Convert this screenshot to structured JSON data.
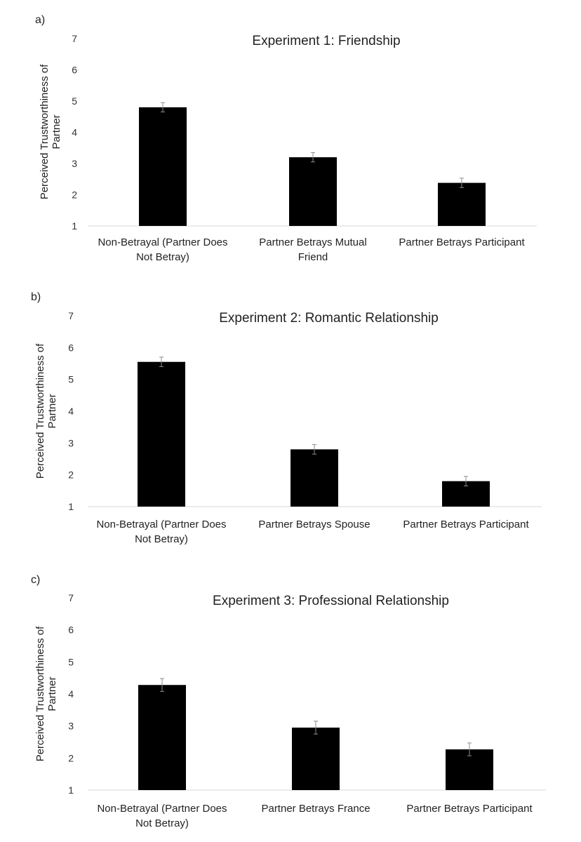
{
  "chart_data": [
    {
      "type": "bar",
      "panel_label": "a)",
      "title": "Experiment 1: Friendship",
      "ylabel": [
        "Perceived Trustworthiness of",
        "Partner"
      ],
      "ylim": [
        1,
        7
      ],
      "yticks": [
        1,
        2,
        3,
        4,
        5,
        6,
        7
      ],
      "categories": [
        [
          "Non-Betrayal (Partner Does",
          "Not Betray)"
        ],
        [
          "Partner Betrays Mutual",
          "Friend"
        ],
        [
          "Partner Betrays Participant"
        ]
      ],
      "values": [
        4.8,
        3.2,
        2.38
      ],
      "errors": [
        0.15,
        0.15,
        0.15
      ],
      "bar_color": "#000000"
    },
    {
      "type": "bar",
      "panel_label": "b)",
      "title": "Experiment 2: Romantic Relationship",
      "ylabel": [
        "Perceived Trustworthiness of",
        "Partner"
      ],
      "ylim": [
        1,
        7
      ],
      "yticks": [
        1,
        2,
        3,
        4,
        5,
        6,
        7
      ],
      "categories": [
        [
          "Non-Betrayal (Partner Does",
          "Not Betray)"
        ],
        [
          "Partner Betrays Spouse"
        ],
        [
          "Partner Betrays Participant"
        ]
      ],
      "values": [
        5.55,
        2.8,
        1.8
      ],
      "errors": [
        0.15,
        0.15,
        0.15
      ],
      "bar_color": "#000000"
    },
    {
      "type": "bar",
      "panel_label": "c)",
      "title": "Experiment 3: Professional Relationship",
      "ylabel": [
        "Perceived Trustworthiness of",
        "Partner"
      ],
      "ylim": [
        1,
        7
      ],
      "yticks": [
        1,
        2,
        3,
        4,
        5,
        6,
        7
      ],
      "categories": [
        [
          "Non-Betrayal (Partner Does",
          "Not Betray)"
        ],
        [
          "Partner Betrays France"
        ],
        [
          "Partner Betrays Participant"
        ]
      ],
      "values": [
        4.28,
        2.95,
        2.27
      ],
      "errors": [
        0.2,
        0.2,
        0.2
      ],
      "bar_color": "#000000"
    }
  ]
}
